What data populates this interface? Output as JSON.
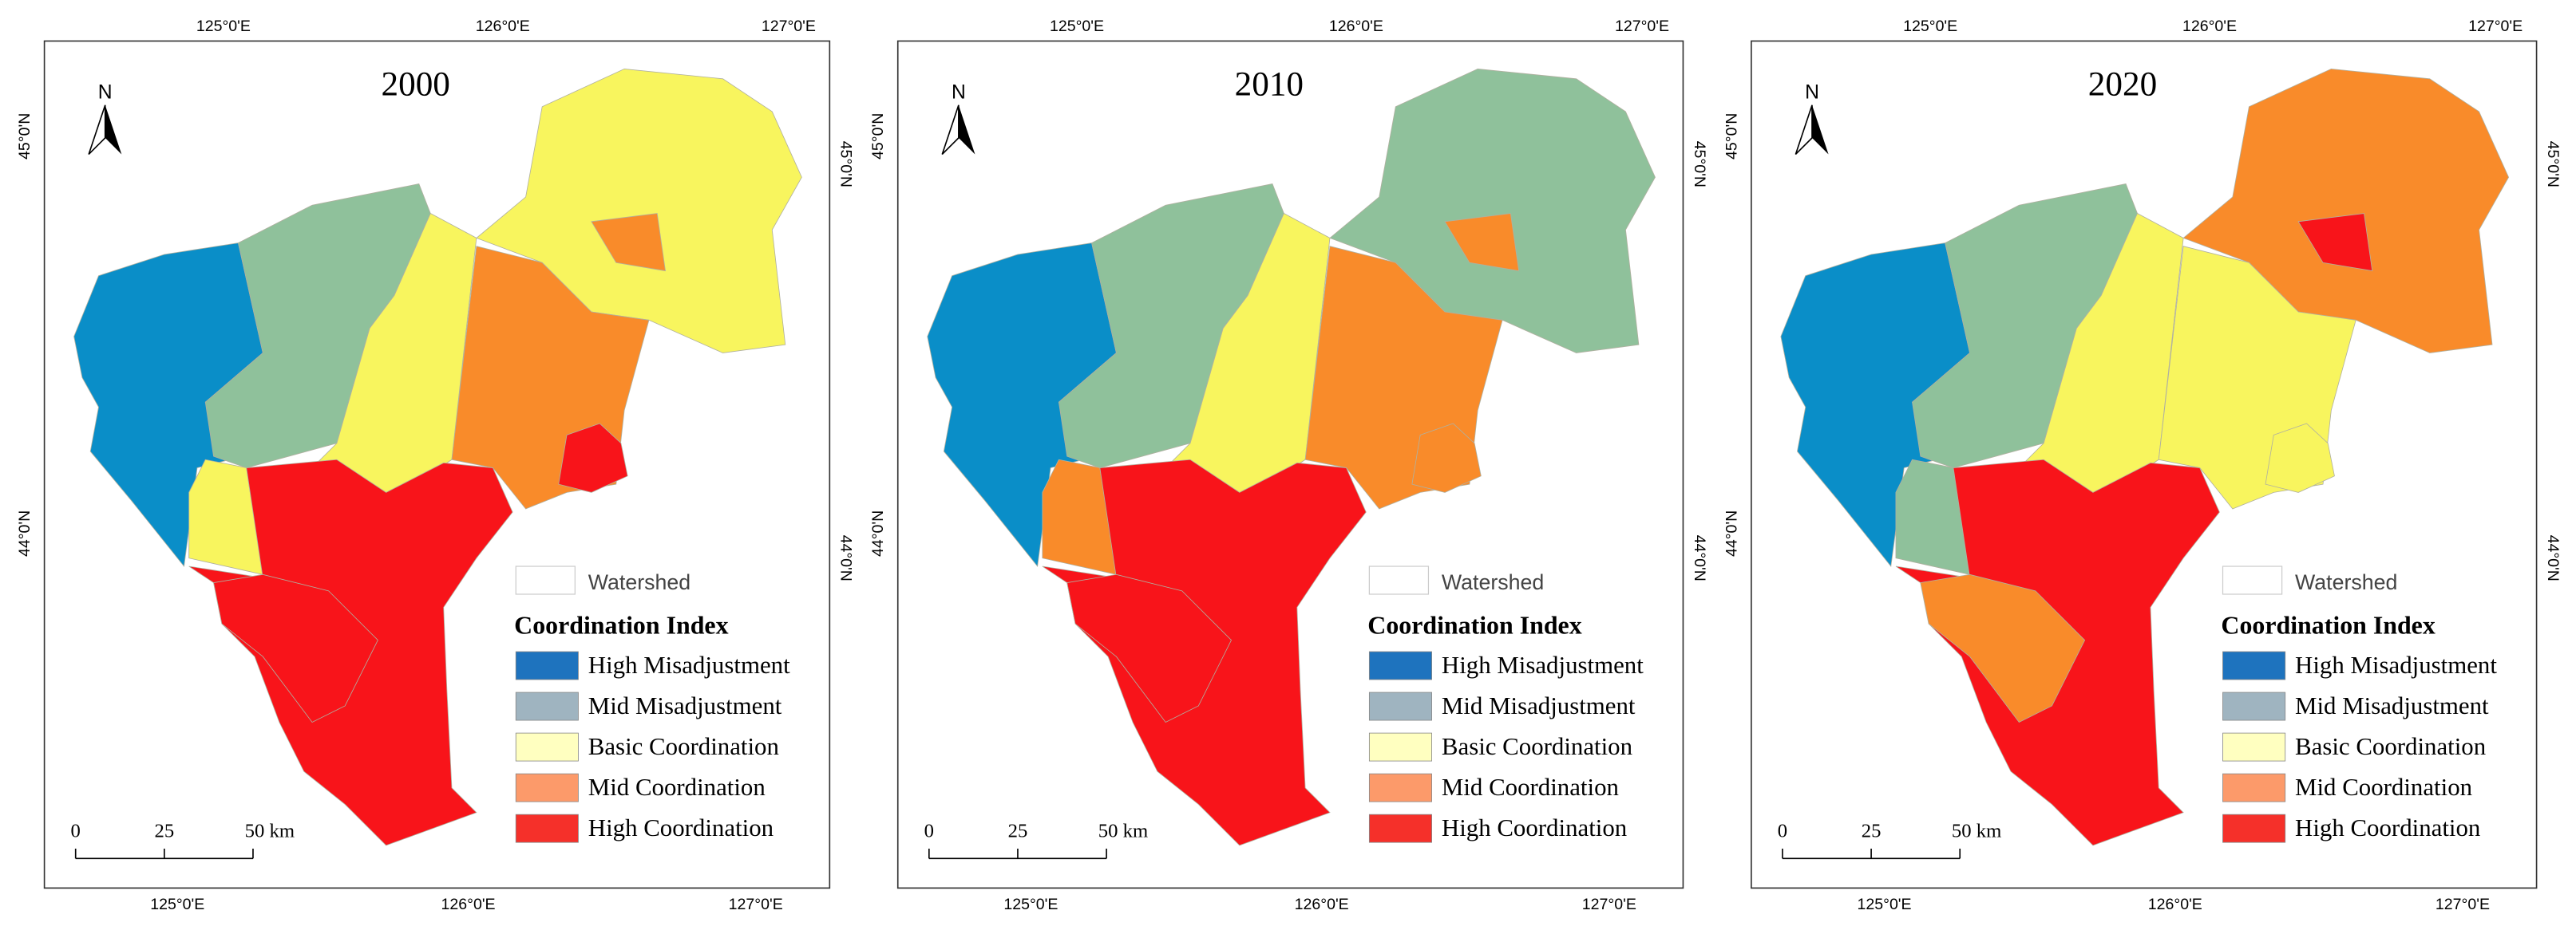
{
  "panels": [
    {
      "title": "2000"
    },
    {
      "title": "2010"
    },
    {
      "title": "2020"
    }
  ],
  "legend": {
    "watershed": "Watershed",
    "title": "Coordination Index",
    "items": [
      {
        "label": "High Misadjustment",
        "color": "#1e73be"
      },
      {
        "label": "Mid Misadjustment",
        "color": "#9fb4c0"
      },
      {
        "label": "Basic Coordination",
        "color": "#ffffc0"
      },
      {
        "label": "Mid Coordination",
        "color": "#fc9a6a"
      },
      {
        "label": "High Coordination",
        "color": "#f5302a"
      }
    ]
  },
  "coordinates": {
    "longitudes": [
      "125°0'E",
      "126°0'E",
      "127°0'E"
    ],
    "latitudes": [
      "45°0'N",
      "44°0'N"
    ]
  },
  "scale_bar": {
    "labels": [
      "0",
      "25",
      "50 km"
    ]
  },
  "north": "N"
}
